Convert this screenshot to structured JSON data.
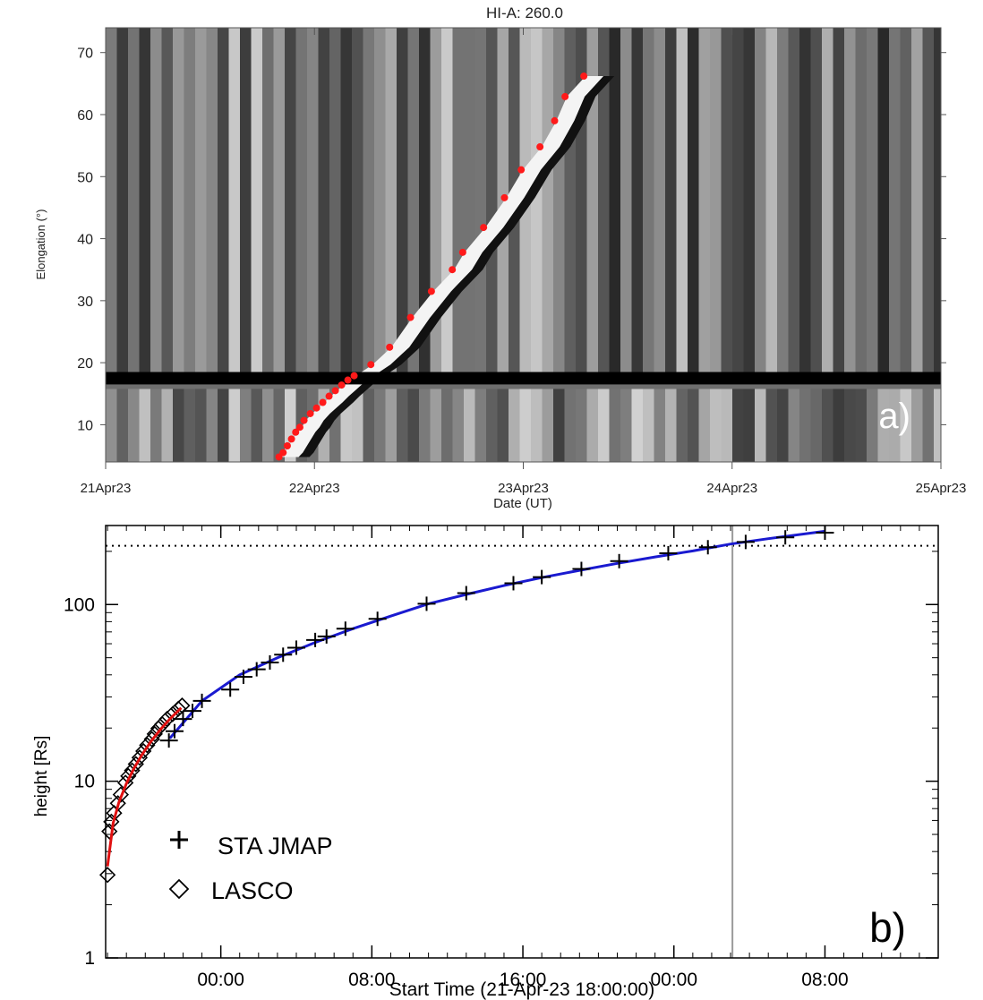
{
  "chart_data": [
    {
      "panel_id": "a",
      "type": "heatmap",
      "title": "HI-A: 260.0",
      "xlabel": "Date (UT)",
      "ylabel": "Elongation (°)",
      "panel_label": "a)",
      "x_ticks": [
        "21Apr23",
        "22Apr23",
        "23Apr23",
        "24Apr23",
        "25Apr23"
      ],
      "x_range_days": [
        0,
        4
      ],
      "y_ticks": [
        "10",
        "20",
        "30",
        "40",
        "50",
        "60",
        "70"
      ],
      "ylim": [
        4,
        74
      ],
      "grayscale": true,
      "track_points_color": "#ff1a1a",
      "track_points": [
        {
          "t": 0.83,
          "e": 4.8
        },
        {
          "t": 0.85,
          "e": 5.5
        },
        {
          "t": 0.87,
          "e": 6.6
        },
        {
          "t": 0.89,
          "e": 7.7
        },
        {
          "t": 0.91,
          "e": 8.8
        },
        {
          "t": 0.93,
          "e": 9.6
        },
        {
          "t": 0.95,
          "e": 10.7
        },
        {
          "t": 0.98,
          "e": 11.8
        },
        {
          "t": 1.01,
          "e": 12.7
        },
        {
          "t": 1.04,
          "e": 13.6
        },
        {
          "t": 1.07,
          "e": 14.6
        },
        {
          "t": 1.1,
          "e": 15.5
        },
        {
          "t": 1.13,
          "e": 16.4
        },
        {
          "t": 1.16,
          "e": 17.2
        },
        {
          "t": 1.19,
          "e": 17.9
        },
        {
          "t": 1.27,
          "e": 19.7
        },
        {
          "t": 1.36,
          "e": 22.5
        },
        {
          "t": 1.46,
          "e": 27.3
        },
        {
          "t": 1.56,
          "e": 31.5
        },
        {
          "t": 1.66,
          "e": 35.0
        },
        {
          "t": 1.71,
          "e": 37.8
        },
        {
          "t": 1.81,
          "e": 41.8
        },
        {
          "t": 1.91,
          "e": 46.6
        },
        {
          "t": 1.99,
          "e": 51.1
        },
        {
          "t": 2.08,
          "e": 54.8
        },
        {
          "t": 2.15,
          "e": 59.0
        },
        {
          "t": 2.2,
          "e": 62.9
        },
        {
          "t": 2.29,
          "e": 66.2
        }
      ]
    },
    {
      "panel_id": "b",
      "type": "scatter",
      "xlabel": "Start Time (21-Apr-23 18:00:00)",
      "ylabel": "height [Rs]",
      "panel_label": "b)",
      "x_ticks": [
        {
          "hours": 6,
          "label": "00:00"
        },
        {
          "hours": 14,
          "label": "08:00"
        },
        {
          "hours": 22,
          "label": "16:00"
        },
        {
          "hours": 30,
          "label": "00:00"
        },
        {
          "hours": 38,
          "label": "08:00"
        }
      ],
      "xlim_hours": [
        -0.1,
        44
      ],
      "y_scale": "log",
      "ylim": [
        1,
        280
      ],
      "y_ticks": [
        "1",
        "10",
        "100"
      ],
      "reference_line_height": 215,
      "vertical_marker_hours": 33.1,
      "series": [
        {
          "name": "STA JMAP",
          "marker": "plus",
          "color": "#000000",
          "points": [
            {
              "x": 3.25,
              "y": 17.0
            },
            {
              "x": 3.55,
              "y": 19.2
            },
            {
              "x": 4.0,
              "y": 22.5
            },
            {
              "x": 4.5,
              "y": 25.0
            },
            {
              "x": 5.0,
              "y": 28.5
            },
            {
              "x": 6.5,
              "y": 33.0
            },
            {
              "x": 7.2,
              "y": 39.0
            },
            {
              "x": 7.9,
              "y": 43.0
            },
            {
              "x": 8.6,
              "y": 47.0
            },
            {
              "x": 9.3,
              "y": 52.0
            },
            {
              "x": 10.0,
              "y": 57.0
            },
            {
              "x": 11.0,
              "y": 63.0
            },
            {
              "x": 11.6,
              "y": 66.0
            },
            {
              "x": 12.6,
              "y": 73.0
            },
            {
              "x": 14.3,
              "y": 83.0
            },
            {
              "x": 16.9,
              "y": 101.0
            },
            {
              "x": 19.0,
              "y": 116.0
            },
            {
              "x": 21.5,
              "y": 132.0
            },
            {
              "x": 23.0,
              "y": 143.0
            },
            {
              "x": 25.1,
              "y": 159.0
            },
            {
              "x": 27.1,
              "y": 176.0
            },
            {
              "x": 29.7,
              "y": 195.0
            },
            {
              "x": 31.8,
              "y": 211.0
            },
            {
              "x": 33.8,
              "y": 226.0
            },
            {
              "x": 35.9,
              "y": 240.0
            },
            {
              "x": 38.0,
              "y": 255.0
            }
          ]
        },
        {
          "name": "LASCO",
          "marker": "diamond",
          "color": "#000000",
          "points": [
            {
              "x": 0.0,
              "y": 2.95
            },
            {
              "x": 0.1,
              "y": 5.2
            },
            {
              "x": 0.2,
              "y": 5.9
            },
            {
              "x": 0.35,
              "y": 6.6
            },
            {
              "x": 0.55,
              "y": 7.5
            },
            {
              "x": 0.7,
              "y": 8.4
            },
            {
              "x": 0.95,
              "y": 9.8
            },
            {
              "x": 1.1,
              "y": 10.7
            },
            {
              "x": 1.3,
              "y": 11.5
            },
            {
              "x": 1.5,
              "y": 12.5
            },
            {
              "x": 1.7,
              "y": 13.6
            },
            {
              "x": 1.9,
              "y": 14.8
            },
            {
              "x": 2.1,
              "y": 16.0
            },
            {
              "x": 2.35,
              "y": 17.3
            },
            {
              "x": 2.5,
              "y": 18.5
            },
            {
              "x": 2.7,
              "y": 19.9
            },
            {
              "x": 2.9,
              "y": 21.0
            },
            {
              "x": 3.15,
              "y": 22.5
            },
            {
              "x": 3.45,
              "y": 24.0
            },
            {
              "x": 3.75,
              "y": 25.7
            },
            {
              "x": 3.95,
              "y": 26.8
            }
          ]
        }
      ],
      "fits": [
        {
          "name": "",
          "color": "#1a1ad0",
          "x": [
            3.3,
            5,
            7,
            9,
            11,
            13,
            15,
            17,
            19,
            21,
            23,
            25,
            27,
            29,
            31,
            33,
            35,
            38
          ],
          "y": [
            17.5,
            28.5,
            40,
            50,
            61,
            73,
            86,
            101,
            114,
            128,
            142,
            156,
            171,
            186,
            201,
            220,
            236,
            260
          ]
        },
        {
          "name": "",
          "color": "#e01010",
          "x": [
            0,
            0.3,
            0.6,
            1.0,
            1.4,
            1.8,
            2.3,
            2.8,
            3.3,
            3.9
          ],
          "y": [
            3.3,
            5.8,
            7.6,
            9.7,
            11.8,
            14.0,
            16.8,
            19.6,
            22.5,
            26.0
          ]
        }
      ]
    }
  ]
}
